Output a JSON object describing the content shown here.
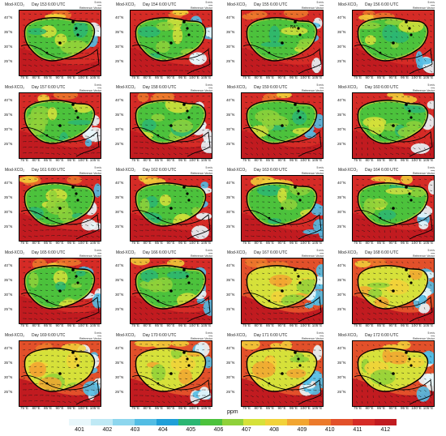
{
  "panels": [
    {
      "mod": "Mod-XCO₂",
      "day": "Day 153  6:00 UTC"
    },
    {
      "mod": "Mod-XCO₂",
      "day": "Day 154  6:00 UTC"
    },
    {
      "mod": "Mod-XCO₂",
      "day": "Day 155  6:00 UTC"
    },
    {
      "mod": "Mod-XCO₂",
      "day": "Day 156  6:00 UTC"
    },
    {
      "mod": "Mod-XCO₂",
      "day": "Day 157  6:00 UTC"
    },
    {
      "mod": "Mod-XCO₂",
      "day": "Day 158  6:00 UTC"
    },
    {
      "mod": "Mod-XCO₂",
      "day": "Day 159  6:00 UTC"
    },
    {
      "mod": "Mod-XCO₂",
      "day": "Day 160  6:00 UTC"
    },
    {
      "mod": "Mod-XCO₂",
      "day": "Day 161  6:00 UTC"
    },
    {
      "mod": "Mod-XCO₂",
      "day": "Day 162  6:00 UTC"
    },
    {
      "mod": "Mod-XCO₂",
      "day": "Day 163  6:00 UTC"
    },
    {
      "mod": "Mod-XCO₂",
      "day": "Day 164  6:00 UTC"
    },
    {
      "mod": "Mod-XCO₂",
      "day": "Day 165  6:00 UTC"
    },
    {
      "mod": "Mod-XCO₂",
      "day": "Day 166  6:00 UTC"
    },
    {
      "mod": "Mod-XCO₂",
      "day": "Day 167  6:00 UTC"
    },
    {
      "mod": "Mod-XCO₂",
      "day": "Day 168  6:00 UTC"
    },
    {
      "mod": "Mod-XCO₂",
      "day": "Day 169  6:00 UTC"
    },
    {
      "mod": "Mod-XCO₂",
      "day": "Day 170  6:00 UTC"
    },
    {
      "mod": "Mod-XCO₂",
      "day": "Day 171  6:00 UTC"
    },
    {
      "mod": "Mod-XCO₂",
      "day": "Day 172  6:00 UTC"
    }
  ],
  "reference_vector": {
    "value": "5 m/s",
    "label": "Reference Vector"
  },
  "x_ticks": [
    "75°E",
    "80°E",
    "85°E",
    "90°E",
    "95°E",
    "100°E",
    "105°E"
  ],
  "y_ticks": [
    "40°N",
    "35°N",
    "30°N",
    "25°N"
  ],
  "colorbar": {
    "unit": "ppm",
    "ticks": [
      "401",
      "402",
      "403",
      "404",
      "405",
      "406",
      "407",
      "408",
      "409",
      "410",
      "411",
      "412"
    ],
    "colors": [
      "#e8f7fb",
      "#bfe9f5",
      "#8dd6ee",
      "#52bde4",
      "#1f9fd8",
      "#2bb673",
      "#4cc23c",
      "#8fd13a",
      "#d6e13a",
      "#f2d23a",
      "#f2a531",
      "#ec7a2b",
      "#e2502a",
      "#d52b26",
      "#c11b20"
    ]
  },
  "map_labels": {
    "day155": "NA"
  }
}
